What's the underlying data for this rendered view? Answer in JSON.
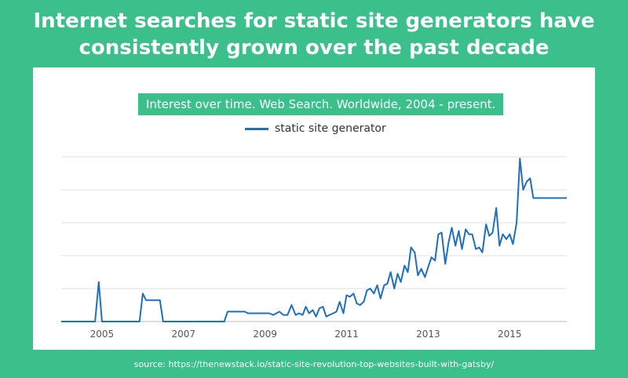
{
  "headline": {
    "line1": "Internet searches for static site generators have",
    "line2": "consistently grown over the past decade"
  },
  "source": "source: https://thenewstack.io/static-site-revolution-top-websites-built-with-gatsby/",
  "colors": {
    "background": "#3bbf8b",
    "line": "#1f6fbf",
    "panel": "#ffffff"
  },
  "chart_data": {
    "type": "line",
    "title": "Interest over time. Web Search. Worldwide, 2004 - present.",
    "xlabel": "",
    "ylabel": "",
    "legend": "top-center",
    "grid": true,
    "xlim": [
      2004.0,
      2016.4
    ],
    "ylim": [
      0,
      100
    ],
    "xticks": [
      2005,
      2007,
      2009,
      2011,
      2013,
      2015
    ],
    "xtick_labels": [
      "2005",
      "2007",
      "2009",
      "2011",
      "2013",
      "2015"
    ],
    "series": [
      {
        "name": "static site generator",
        "x": [
          2004.0,
          2004.83,
          2004.92,
          2005.0,
          2005.92,
          2006.0,
          2006.08,
          2006.42,
          2006.5,
          2008.0,
          2008.08,
          2008.5,
          2008.58,
          2009.1,
          2009.2,
          2009.35,
          2009.45,
          2009.55,
          2009.65,
          2009.75,
          2009.83,
          2009.92,
          2010.0,
          2010.08,
          2010.17,
          2010.25,
          2010.33,
          2010.42,
          2010.5,
          2010.58,
          2010.67,
          2010.75,
          2010.83,
          2010.92,
          2011.0,
          2011.08,
          2011.17,
          2011.25,
          2011.33,
          2011.42,
          2011.5,
          2011.58,
          2011.67,
          2011.75,
          2011.83,
          2011.92,
          2012.0,
          2012.08,
          2012.17,
          2012.25,
          2012.33,
          2012.42,
          2012.5,
          2012.58,
          2012.67,
          2012.75,
          2012.83,
          2012.92,
          2013.0,
          2013.08,
          2013.17,
          2013.25,
          2013.33,
          2013.42,
          2013.5,
          2013.58,
          2013.67,
          2013.75,
          2013.83,
          2013.92,
          2014.0,
          2014.08,
          2014.17,
          2014.25,
          2014.33,
          2014.42,
          2014.5,
          2014.58,
          2014.67,
          2014.75,
          2014.83,
          2014.92,
          2015.0,
          2015.08,
          2015.17,
          2015.25,
          2015.33,
          2015.42,
          2015.5,
          2015.58,
          2015.67,
          2015.75,
          2015.83,
          2015.92,
          2016.0,
          2016.08,
          2016.17,
          2016.25,
          2016.32,
          2016.4
        ],
        "y": [
          0,
          0,
          24,
          0,
          0,
          17,
          13,
          13,
          0,
          0,
          6,
          6,
          5,
          5,
          4,
          6,
          4,
          4,
          10,
          4,
          5,
          4,
          9,
          5,
          7,
          3,
          8,
          9,
          3,
          4,
          5,
          6,
          12,
          5,
          16,
          15,
          17,
          11,
          10,
          12,
          19,
          20,
          17,
          22,
          14,
          22,
          23,
          30,
          20,
          29,
          24,
          34,
          30,
          45,
          42,
          28,
          32,
          27,
          33,
          39,
          37,
          53,
          54,
          35,
          48,
          57,
          46,
          55,
          44,
          56,
          53,
          53,
          44,
          45,
          42,
          59,
          52,
          54,
          69,
          46,
          53,
          50,
          53,
          47,
          60,
          99,
          80,
          85,
          87,
          75,
          75,
          75,
          75,
          75,
          75,
          75,
          75,
          75,
          75,
          75
        ]
      }
    ]
  }
}
